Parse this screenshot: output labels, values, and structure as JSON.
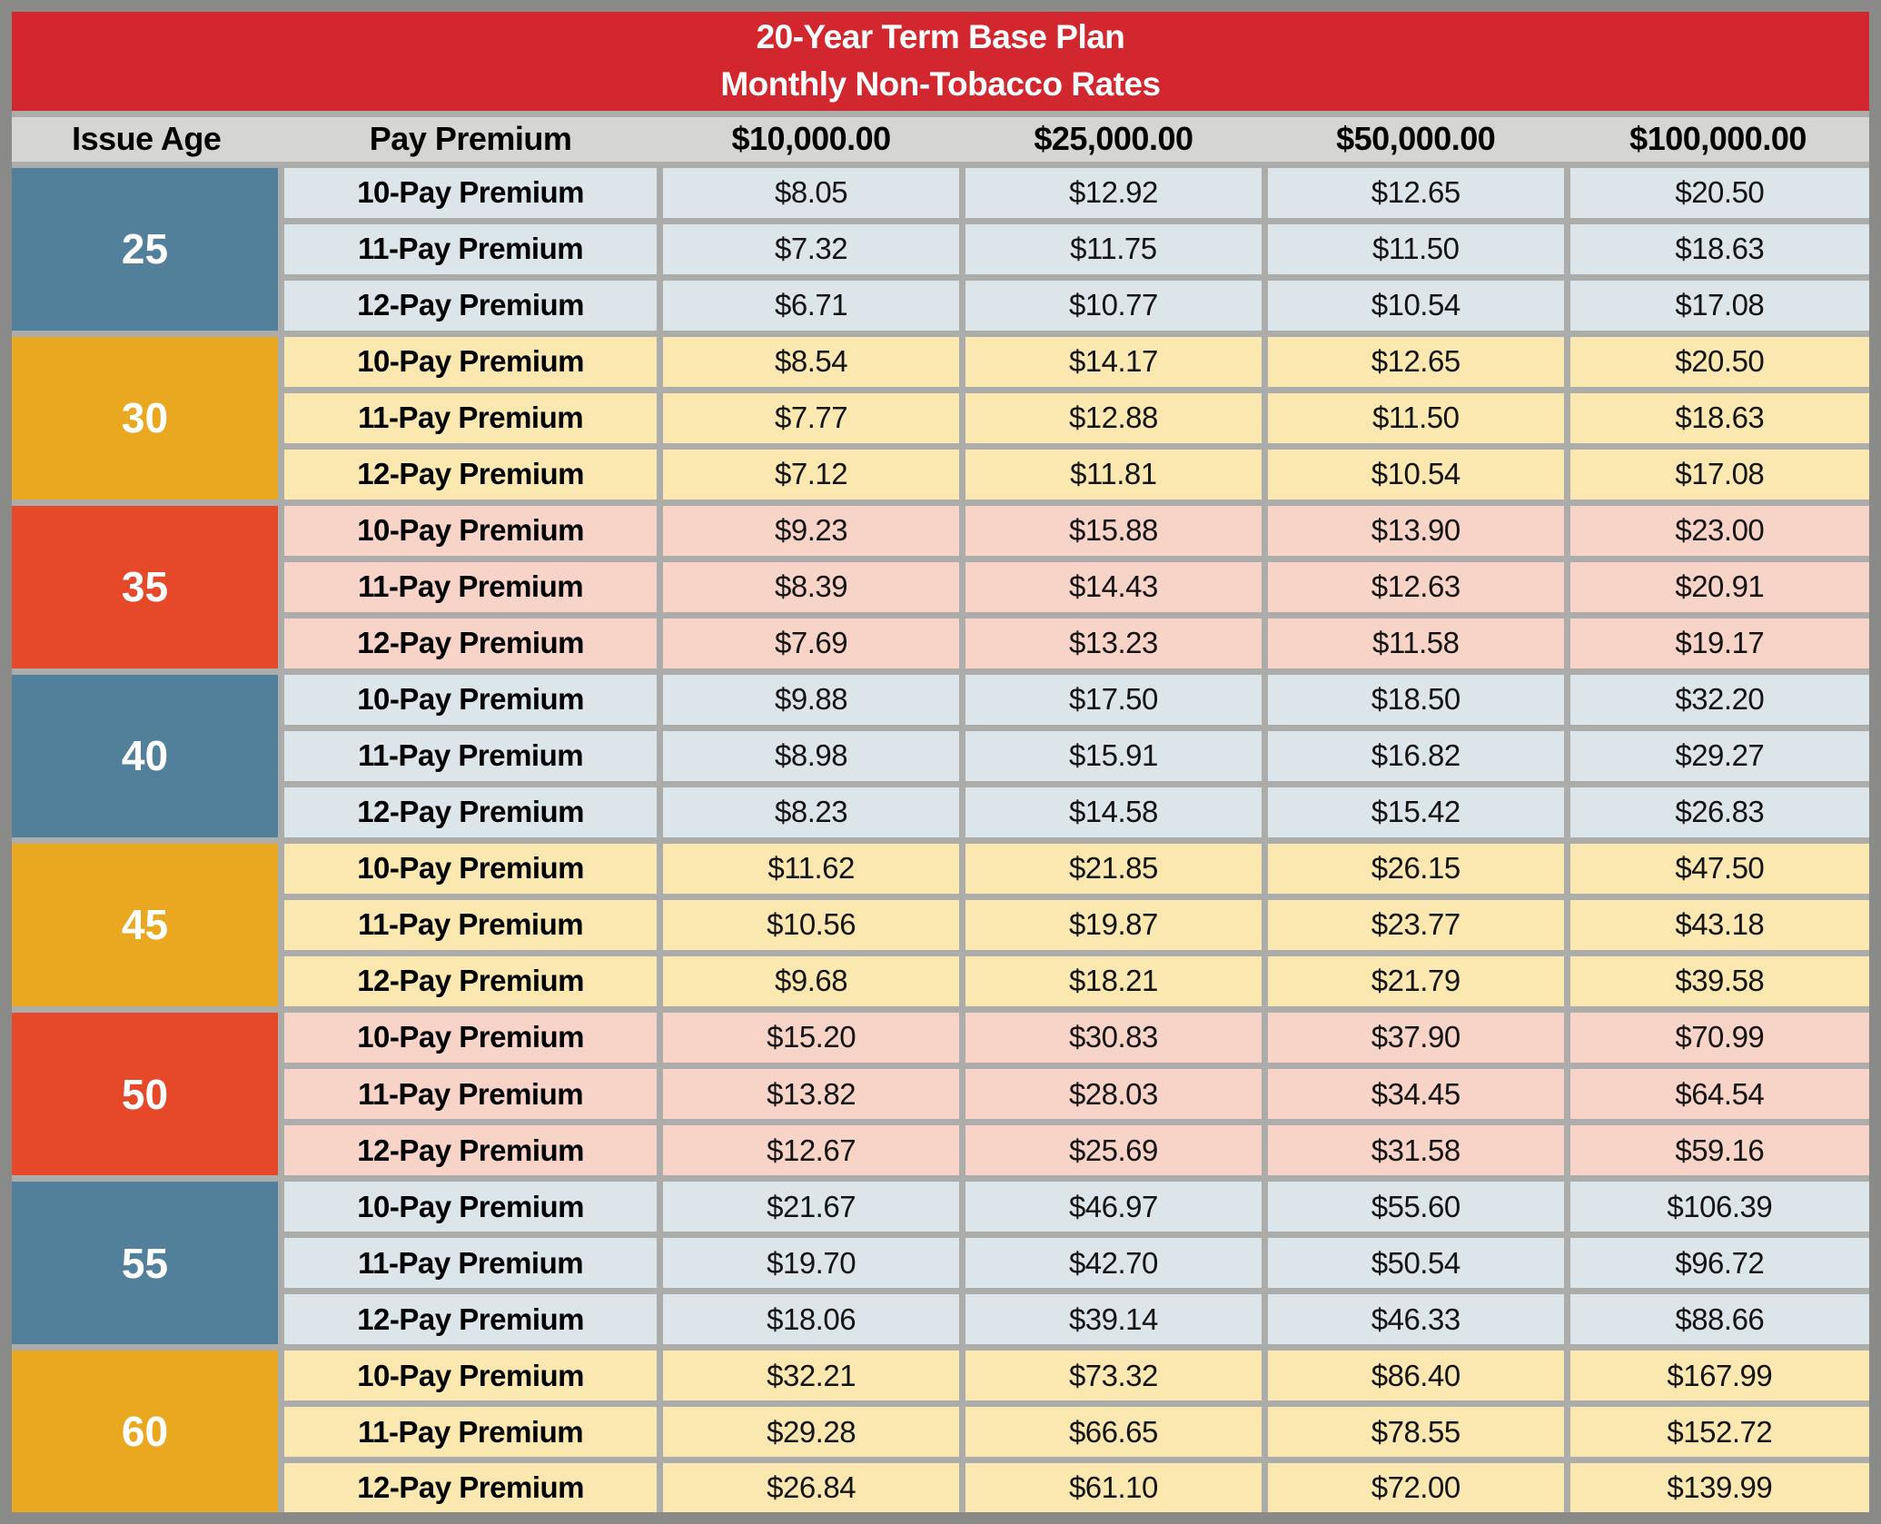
{
  "banner": {
    "line1": "20-Year Term Base Plan",
    "line2": "Monthly Non-Tobacco Rates"
  },
  "colors": {
    "banner_red": "#D2272E",
    "header_gray": "#D5D5D3",
    "frame_gray": "#8A8A88",
    "grid_gray": "#ACACAA",
    "age_blue": "#527F99",
    "age_amber": "#E9A81F",
    "age_red": "#E6492A",
    "row_blue": "#DBE5EA",
    "row_amber": "#FBE7B0",
    "row_red": "#F8D3C8"
  },
  "chart_data": {
    "type": "table",
    "title": "20-Year Term Base Plan Monthly Non-Tobacco Rates",
    "columns": [
      "Issue Age",
      "Pay Premium",
      "$10,000.00",
      "$25,000.00",
      "$50,000.00",
      "$100,000.00"
    ],
    "groups": [
      {
        "age": "25",
        "theme": "blue",
        "rows": [
          {
            "label": "10-Pay Premium",
            "values": [
              "$8.05",
              "$12.92",
              "$12.65",
              "$20.50"
            ]
          },
          {
            "label": "11-Pay Premium",
            "values": [
              "$7.32",
              "$11.75",
              "$11.50",
              "$18.63"
            ]
          },
          {
            "label": "12-Pay Premium",
            "values": [
              "$6.71",
              "$10.77",
              "$10.54",
              "$17.08"
            ]
          }
        ]
      },
      {
        "age": "30",
        "theme": "amber",
        "rows": [
          {
            "label": "10-Pay Premium",
            "values": [
              "$8.54",
              "$14.17",
              "$12.65",
              "$20.50"
            ]
          },
          {
            "label": "11-Pay Premium",
            "values": [
              "$7.77",
              "$12.88",
              "$11.50",
              "$18.63"
            ]
          },
          {
            "label": "12-Pay Premium",
            "values": [
              "$7.12",
              "$11.81",
              "$10.54",
              "$17.08"
            ]
          }
        ]
      },
      {
        "age": "35",
        "theme": "red",
        "rows": [
          {
            "label": "10-Pay Premium",
            "values": [
              "$9.23",
              "$15.88",
              "$13.90",
              "$23.00"
            ]
          },
          {
            "label": "11-Pay Premium",
            "values": [
              "$8.39",
              "$14.43",
              "$12.63",
              "$20.91"
            ]
          },
          {
            "label": "12-Pay Premium",
            "values": [
              "$7.69",
              "$13.23",
              "$11.58",
              "$19.17"
            ]
          }
        ]
      },
      {
        "age": "40",
        "theme": "blue",
        "rows": [
          {
            "label": "10-Pay Premium",
            "values": [
              "$9.88",
              "$17.50",
              "$18.50",
              "$32.20"
            ]
          },
          {
            "label": "11-Pay Premium",
            "values": [
              "$8.98",
              "$15.91",
              "$16.82",
              "$29.27"
            ]
          },
          {
            "label": "12-Pay Premium",
            "values": [
              "$8.23",
              "$14.58",
              "$15.42",
              "$26.83"
            ]
          }
        ]
      },
      {
        "age": "45",
        "theme": "amber",
        "rows": [
          {
            "label": "10-Pay Premium",
            "values": [
              "$11.62",
              "$21.85",
              "$26.15",
              "$47.50"
            ]
          },
          {
            "label": "11-Pay Premium",
            "values": [
              "$10.56",
              "$19.87",
              "$23.77",
              "$43.18"
            ]
          },
          {
            "label": "12-Pay Premium",
            "values": [
              "$9.68",
              "$18.21",
              "$21.79",
              "$39.58"
            ]
          }
        ]
      },
      {
        "age": "50",
        "theme": "red",
        "rows": [
          {
            "label": "10-Pay Premium",
            "values": [
              "$15.20",
              "$30.83",
              "$37.90",
              "$70.99"
            ]
          },
          {
            "label": "11-Pay Premium",
            "values": [
              "$13.82",
              "$28.03",
              "$34.45",
              "$64.54"
            ]
          },
          {
            "label": "12-Pay Premium",
            "values": [
              "$12.67",
              "$25.69",
              "$31.58",
              "$59.16"
            ]
          }
        ]
      },
      {
        "age": "55",
        "theme": "blue",
        "rows": [
          {
            "label": "10-Pay Premium",
            "values": [
              "$21.67",
              "$46.97",
              "$55.60",
              "$106.39"
            ]
          },
          {
            "label": "11-Pay Premium",
            "values": [
              "$19.70",
              "$42.70",
              "$50.54",
              "$96.72"
            ]
          },
          {
            "label": "12-Pay Premium",
            "values": [
              "$18.06",
              "$39.14",
              "$46.33",
              "$88.66"
            ]
          }
        ]
      },
      {
        "age": "60",
        "theme": "amber",
        "rows": [
          {
            "label": "10-Pay Premium",
            "values": [
              "$32.21",
              "$73.32",
              "$86.40",
              "$167.99"
            ]
          },
          {
            "label": "11-Pay Premium",
            "values": [
              "$29.28",
              "$66.65",
              "$78.55",
              "$152.72"
            ]
          },
          {
            "label": "12-Pay Premium",
            "values": [
              "$26.84",
              "$61.10",
              "$72.00",
              "$139.99"
            ]
          }
        ]
      }
    ]
  }
}
